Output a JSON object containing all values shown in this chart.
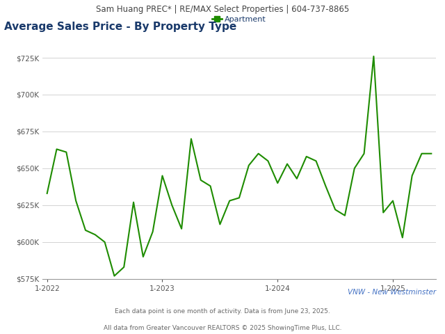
{
  "header": "Sam Huang PREC* | RE/MAX Select Properties | 604-737-8865",
  "title": "Average Sales Price - By Property Type",
  "legend_label": "Apartment",
  "line_color": "#1e8c00",
  "footer_left": "All data from Greater Vancouver REALTORS © 2025 ShowingTime Plus, LLC.",
  "footer_right": "Each data point is one month of activity. Data is from June 23, 2025.",
  "region_label": "VNW - New Westminster",
  "background_color": "#ffffff",
  "header_bg": "#e0e0e0",
  "ylim": [
    575000,
    737000
  ],
  "yticks": [
    575000,
    600000,
    625000,
    650000,
    675000,
    700000,
    725000
  ],
  "values": [
    633000,
    663000,
    661000,
    628000,
    608000,
    605000,
    600000,
    577000,
    583000,
    627000,
    590000,
    607000,
    645000,
    625000,
    609000,
    670000,
    642000,
    638000,
    612000,
    628000,
    630000,
    652000,
    660000,
    655000,
    640000,
    653000,
    643000,
    658000,
    655000,
    638000,
    622000,
    618000,
    650000,
    660000,
    726000,
    620000,
    628000,
    603000,
    645000,
    660000,
    660000
  ],
  "xtick_positions": [
    0,
    12,
    24,
    36
  ],
  "xtick_labels": [
    "1-2022",
    "1-2023",
    "1-2024",
    "1-2025"
  ],
  "title_color": "#1a3a6b",
  "header_text_color": "#444444",
  "tick_color": "#555555",
  "region_color": "#4472c4",
  "footer_color": "#666666",
  "grid_color": "#cccccc",
  "spine_color": "#999999"
}
